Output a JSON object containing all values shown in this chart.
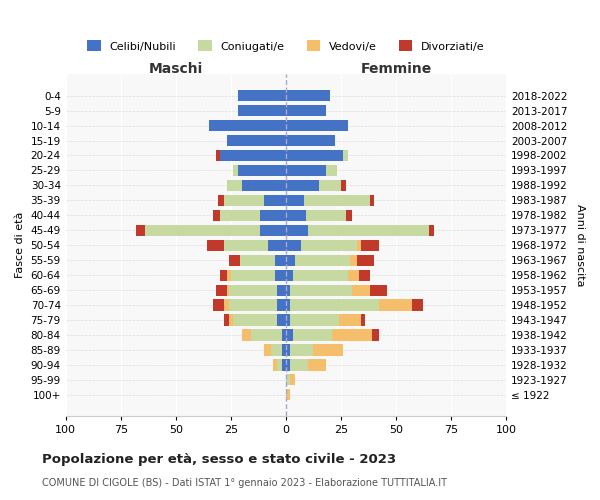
{
  "age_groups": [
    "100+",
    "95-99",
    "90-94",
    "85-89",
    "80-84",
    "75-79",
    "70-74",
    "65-69",
    "60-64",
    "55-59",
    "50-54",
    "45-49",
    "40-44",
    "35-39",
    "30-34",
    "25-29",
    "20-24",
    "15-19",
    "10-14",
    "5-9",
    "0-4"
  ],
  "birth_years": [
    "≤ 1922",
    "1923-1927",
    "1928-1932",
    "1933-1937",
    "1938-1942",
    "1943-1947",
    "1948-1952",
    "1953-1957",
    "1958-1962",
    "1963-1967",
    "1968-1972",
    "1973-1977",
    "1978-1982",
    "1983-1987",
    "1988-1992",
    "1993-1997",
    "1998-2002",
    "2003-2007",
    "2008-2012",
    "2013-2017",
    "2018-2022"
  ],
  "colors": {
    "celibi": "#4472c4",
    "coniugati": "#c5d9a0",
    "vedovi": "#f5be6a",
    "divorziati": "#c0392b"
  },
  "maschi": {
    "celibi": [
      0,
      0,
      2,
      2,
      2,
      4,
      4,
      4,
      5,
      5,
      8,
      12,
      12,
      10,
      20,
      22,
      30,
      27,
      35,
      22,
      22
    ],
    "coniugati": [
      0,
      0,
      2,
      5,
      14,
      20,
      22,
      22,
      20,
      16,
      20,
      52,
      18,
      18,
      7,
      2,
      0,
      0,
      0,
      0,
      0
    ],
    "vedovi": [
      0,
      0,
      2,
      3,
      4,
      2,
      2,
      1,
      2,
      0,
      0,
      0,
      0,
      0,
      0,
      0,
      0,
      0,
      0,
      0,
      0
    ],
    "divorziati": [
      0,
      0,
      0,
      0,
      0,
      2,
      5,
      5,
      3,
      5,
      8,
      4,
      3,
      3,
      0,
      0,
      2,
      0,
      0,
      0,
      0
    ]
  },
  "femmine": {
    "celibi": [
      0,
      0,
      2,
      2,
      3,
      2,
      2,
      2,
      3,
      4,
      7,
      10,
      9,
      8,
      15,
      18,
      26,
      22,
      28,
      18,
      20
    ],
    "coniugati": [
      0,
      2,
      8,
      10,
      18,
      22,
      40,
      28,
      25,
      25,
      25,
      55,
      18,
      30,
      10,
      5,
      2,
      0,
      0,
      0,
      0
    ],
    "vedovi": [
      2,
      2,
      8,
      14,
      18,
      10,
      15,
      8,
      5,
      3,
      2,
      0,
      0,
      0,
      0,
      0,
      0,
      0,
      0,
      0,
      0
    ],
    "divorziati": [
      0,
      0,
      0,
      0,
      3,
      2,
      5,
      8,
      5,
      8,
      8,
      2,
      3,
      2,
      2,
      0,
      0,
      0,
      0,
      0,
      0
    ]
  },
  "title": "Popolazione per età, sesso e stato civile - 2023",
  "subtitle": "COMUNE DI CIGOLE (BS) - Dati ISTAT 1° gennaio 2023 - Elaborazione TUTTITALIA.IT",
  "xlabel_left": "Maschi",
  "xlabel_right": "Femmine",
  "ylabel_left": "Fasce di età",
  "ylabel_right": "Anni di nascita",
  "xlim": 100,
  "legend_labels": [
    "Celibi/Nubili",
    "Coniugati/e",
    "Vedovi/e",
    "Divorziati/e"
  ],
  "bg_color": "#ffffff",
  "plot_bg": "#f8f8f8"
}
